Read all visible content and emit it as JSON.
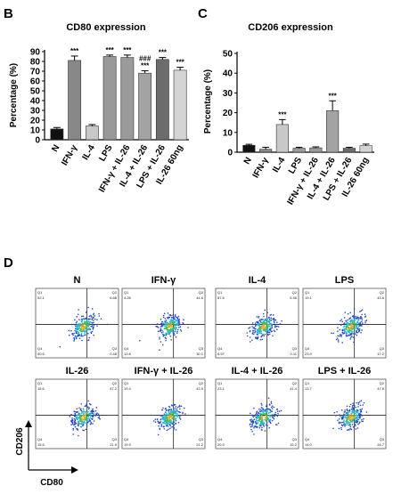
{
  "panels": {
    "B": {
      "letter": "B"
    },
    "C": {
      "letter": "C"
    },
    "D": {
      "letter": "D"
    }
  },
  "chart_data": [
    {
      "id": "B",
      "type": "bar",
      "title": "CD80 expression",
      "ylabel": "Percentage (%)",
      "xlabel": "",
      "ylim": [
        0,
        90
      ],
      "yticks": [
        0,
        10,
        20,
        30,
        40,
        50,
        60,
        70,
        80,
        90
      ],
      "categories": [
        "N",
        "IFN-γ",
        "IL-4",
        "LPS",
        "IFN-γ + IL-26",
        "IL-4 + IL-26",
        "LPS + IL-26",
        "IL-26 60ng"
      ],
      "values": [
        11,
        81,
        14,
        85,
        84,
        68,
        82,
        71
      ],
      "errors": [
        1.5,
        4.5,
        1.5,
        1.5,
        2.5,
        2.5,
        2,
        3
      ],
      "colors": [
        "#111111",
        "#888888",
        "#c8c8c8",
        "#999999",
        "#9a9a9a",
        "#a3a3a3",
        "#6c6c6c",
        "#d4d4d4"
      ],
      "annotations": [
        {
          "index": 1,
          "lines": [
            "***"
          ]
        },
        {
          "index": 3,
          "lines": [
            "***"
          ]
        },
        {
          "index": 4,
          "lines": [
            "***"
          ]
        },
        {
          "index": 5,
          "lines": [
            "###",
            "***"
          ]
        },
        {
          "index": 6,
          "lines": [
            "***"
          ]
        },
        {
          "index": 7,
          "lines": [
            "***"
          ]
        }
      ]
    },
    {
      "id": "C",
      "type": "bar",
      "title": "CD206 expression",
      "ylabel": "Percentage (%)",
      "xlabel": "",
      "ylim": [
        0,
        50
      ],
      "yticks": [
        0,
        10,
        20,
        30,
        40,
        50
      ],
      "categories": [
        "N",
        "IFN-γ",
        "IL-4",
        "LPS",
        "IFN-γ + IL-26",
        "IL-4 + IL-26",
        "LPS + IL-26",
        "IL-26 60ng"
      ],
      "values": [
        3.5,
        1.5,
        14,
        2,
        2.2,
        21,
        2,
        3.3
      ],
      "errors": [
        0.5,
        1,
        2.5,
        0.5,
        0.5,
        5,
        0.5,
        0.8
      ],
      "colors": [
        "#111111",
        "#888888",
        "#c8c8c8",
        "#999999",
        "#9a9a9a",
        "#a3a3a3",
        "#6c6c6c",
        "#d4d4d4"
      ],
      "annotations": [
        {
          "index": 2,
          "lines": [
            "***"
          ]
        },
        {
          "index": 5,
          "lines": [
            "***"
          ]
        }
      ]
    }
  ],
  "flow": {
    "ylabel": "CD206",
    "xlabel": "CD80",
    "plots": [
      {
        "title": "N",
        "q1": "52.1",
        "q2": "6.88",
        "q4": "40.6",
        "q3": "0.48"
      },
      {
        "title": "IFN-γ",
        "q1": "4.28",
        "q2": "44.6",
        "q4": "13.8",
        "q3": "30.1"
      },
      {
        "title": "IL-4",
        "q1": "87.6",
        "q2": "5.46",
        "q4": "6.57",
        "q3": "0.11"
      },
      {
        "title": "LPS",
        "q1": "19.1",
        "q2": "43.6",
        "q4": "23.9",
        "q3": "17.2"
      },
      {
        "title": "IL-26",
        "q1": "15.6",
        "q2": "47.2",
        "q4": "15.6",
        "q3": "21.9"
      },
      {
        "title": "IFN-γ + IL-26",
        "q1": "19.4",
        "q2": "43.5",
        "q4": "19.9",
        "q3": "21.2"
      },
      {
        "title": "IL-4 + IL-26",
        "q1": "23.1",
        "q2": "41.4",
        "q4": "20.3",
        "q3": "15.2"
      },
      {
        "title": "LPS + IL-26",
        "q1": "13.7",
        "q2": "47.6",
        "q4": "14.0",
        "q3": "24.7"
      }
    ]
  }
}
